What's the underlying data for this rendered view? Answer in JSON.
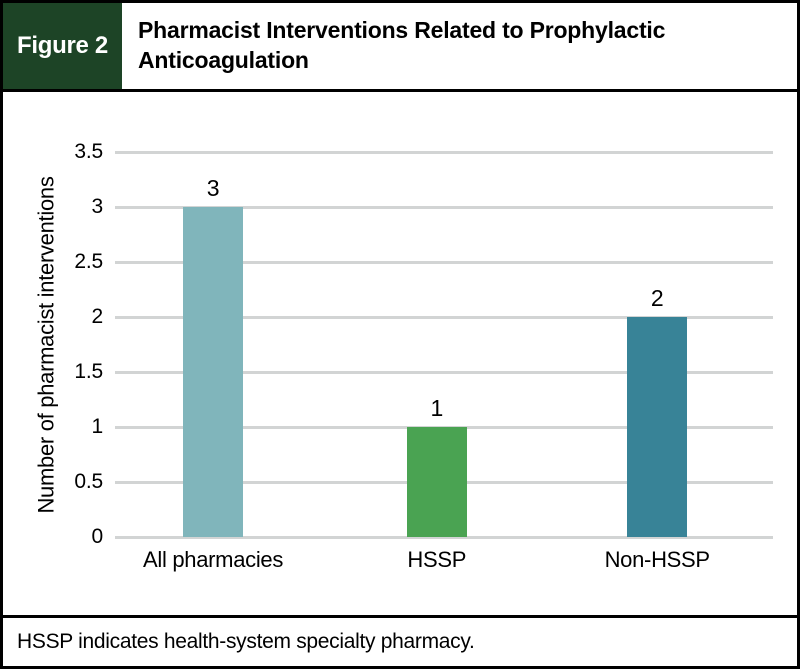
{
  "figure_label": "Figure 2",
  "title": "Pharmacist Interventions Related to Prophylactic Anticoagulation",
  "footnote": "HSSP indicates health-system specialty pharmacy.",
  "theme": {
    "header_green": "#1d4426",
    "grid_color": "#d2d4d4",
    "border_color": "#000000",
    "bar_colors": [
      "#80b5bb",
      "#4aa352",
      "#388397"
    ]
  },
  "chart_data": {
    "type": "bar",
    "categories": [
      "All pharmacies",
      "HSSP",
      "Non-HSSP"
    ],
    "values": [
      3,
      1,
      2
    ],
    "value_labels": [
      "3",
      "1",
      "2"
    ],
    "bar_colors": [
      "#80b5bb",
      "#4aa352",
      "#388397"
    ],
    "title": "Pharmacist Interventions Related to Prophylactic Anticoagulation",
    "xlabel": "",
    "ylabel": "Number of pharmacist interventions",
    "ylim": [
      0,
      3.5
    ],
    "yticks": [
      0,
      0.5,
      1,
      1.5,
      2,
      2.5,
      3,
      3.5
    ],
    "grid": true,
    "legend": false
  }
}
